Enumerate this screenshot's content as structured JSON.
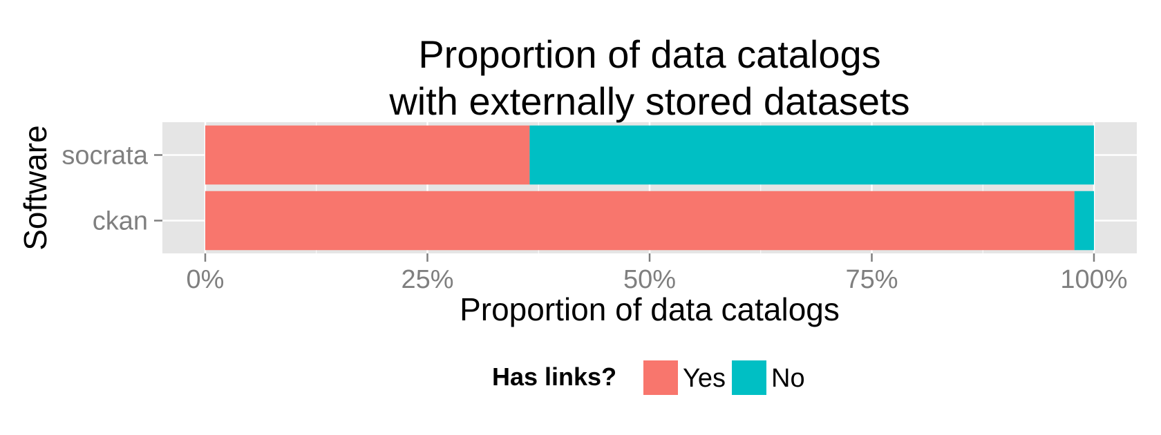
{
  "chart_data": {
    "type": "bar",
    "orientation": "horizontal",
    "stacked": true,
    "title_lines": [
      "Proportion of data catalogs",
      "with externally stored datasets"
    ],
    "xlabel": "Proportion of data catalogs",
    "ylabel": "Software",
    "categories": [
      "socrata",
      "ckan"
    ],
    "series": [
      {
        "name": "Yes",
        "color": "#f8766d",
        "values": [
          0.365,
          0.978
        ]
      },
      {
        "name": "No",
        "color": "#00bfc4",
        "values": [
          0.635,
          0.022
        ]
      }
    ],
    "xlim": [
      0,
      1
    ],
    "x_ticks": [
      0,
      0.25,
      0.5,
      0.75,
      1
    ],
    "x_tick_labels": [
      "0%",
      "25%",
      "50%",
      "75%",
      "100%"
    ],
    "legend": {
      "title": "Has links?",
      "position": "bottom",
      "labels": [
        "Yes",
        "No"
      ]
    },
    "grid": true,
    "panel_background": "#e5e5e5",
    "grid_color": "#ffffff"
  }
}
